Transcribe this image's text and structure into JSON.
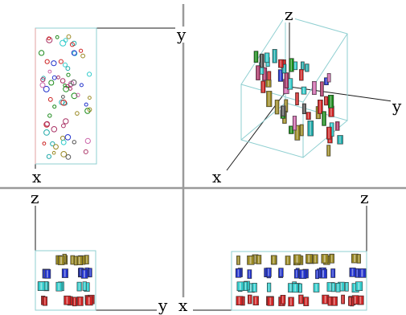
{
  "viewports": {
    "top_left": {
      "name": "top view",
      "labels": {
        "horizontal": "x",
        "vertical": "y"
      }
    },
    "top_right": {
      "name": "perspective view",
      "labels": {
        "x": "x",
        "y": "y",
        "z": "z"
      }
    },
    "bottom_left": {
      "name": "side view",
      "labels": {
        "horizontal": "y",
        "vertical": "z"
      }
    },
    "bottom_right": {
      "name": "front view",
      "labels": {
        "horizontal": "x",
        "vertical": "z"
      }
    }
  },
  "colors": {
    "background": "#ffffff",
    "divider": "#9a9a9a",
    "axis": "#1a1a1a",
    "box_outline": "#8fcfd1",
    "box_red_edge": "#e0a0a0",
    "marker_palette": [
      "#cc2222",
      "#2233cc",
      "#22aaaa",
      "#998822",
      "#33cccc",
      "#cc66aa",
      "#1a8a1a",
      "#555555",
      "#aa3366"
    ]
  },
  "icons": [
    "cylinder-marker",
    "ring-marker"
  ]
}
